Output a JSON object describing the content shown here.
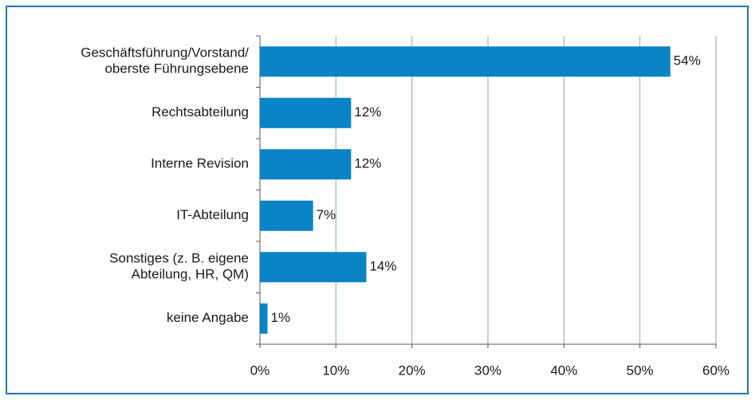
{
  "chart_data": {
    "type": "bar",
    "orientation": "horizontal",
    "categories": [
      [
        "Geschäftsführung/Vorstand/",
        "oberste Führungsebene"
      ],
      [
        "Rechtsabteilung"
      ],
      [
        "Interne Revision"
      ],
      [
        "IT-Abteilung"
      ],
      [
        "Sonstiges (z. B. eigene",
        "Abteilung, HR, QM)"
      ],
      [
        "keine Angabe"
      ]
    ],
    "values": [
      54,
      12,
      12,
      7,
      14,
      1
    ],
    "value_labels": [
      "54%",
      "12%",
      "12%",
      "7%",
      "14%",
      "1%"
    ],
    "color": "#0a84c6",
    "xlim": [
      0,
      60
    ],
    "xticks": [
      {
        "value": 0,
        "label": "0%"
      },
      {
        "value": 10,
        "label": "10%"
      },
      {
        "value": 20,
        "label": "20%"
      },
      {
        "value": 30,
        "label": "30%"
      },
      {
        "value": 40,
        "label": "40%"
      },
      {
        "value": 50,
        "label": "50%"
      },
      {
        "value": 60,
        "label": "60%"
      }
    ],
    "grid": true
  }
}
